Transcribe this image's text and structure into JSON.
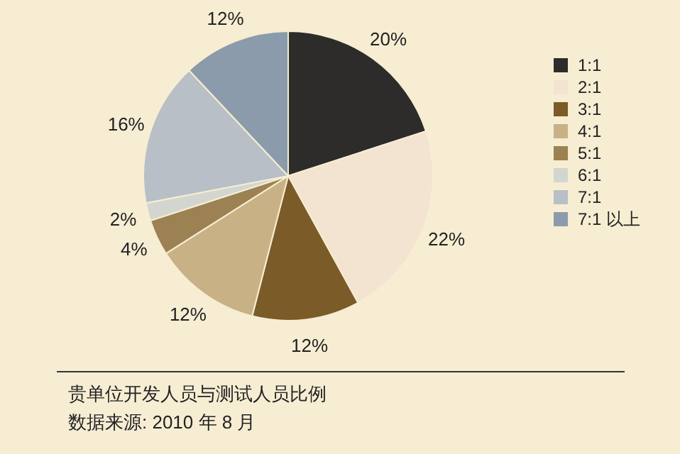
{
  "chart_data": {
    "type": "pie",
    "title": "贵单位开发人员与测试人员比例",
    "annotations": [
      "数据来源: 2010 年 8 月"
    ],
    "categories": [
      "1:1",
      "2:1",
      "3:1",
      "4:1",
      "5:1",
      "6:1",
      "7:1",
      "7:1 以上"
    ],
    "values": [
      20,
      22,
      12,
      12,
      4,
      2,
      16,
      12
    ],
    "value_labels": [
      "20%",
      "22%",
      "12%",
      "12%",
      "4%",
      "2%",
      "16%",
      "12%"
    ],
    "colors": [
      "#2e2c2a",
      "#f3e3d1",
      "#7b5b27",
      "#c8b285",
      "#9c8152",
      "#d3d6cf",
      "#b9bfc6",
      "#8b9bab"
    ],
    "legend": "right"
  }
}
